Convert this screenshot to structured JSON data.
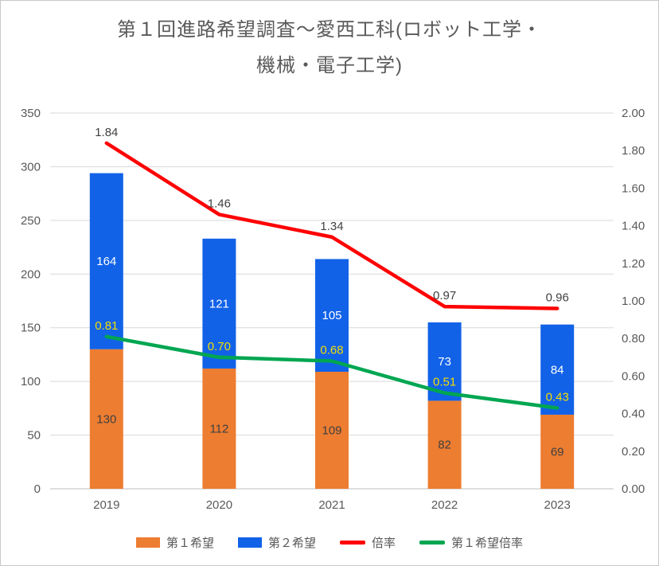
{
  "title": {
    "line1": "第１回進路希望調査～愛西工科(ロボット工学・",
    "line2": "機械・電子工学)"
  },
  "chart_data": {
    "type": "bar+line-combo",
    "categories": [
      "2019",
      "2020",
      "2021",
      "2022",
      "2023"
    ],
    "series": [
      {
        "name": "第１希望",
        "type": "bar",
        "axis": "left",
        "color": "#ED7D31",
        "label_color": "#404040",
        "values": [
          130,
          112,
          109,
          82,
          69
        ],
        "labels": [
          "130",
          "112",
          "109",
          "82",
          "69"
        ]
      },
      {
        "name": "第２希望",
        "type": "bar",
        "axis": "left",
        "color": "#1262E8",
        "label_color": "#FFFFFF",
        "values": [
          164,
          121,
          105,
          73,
          84
        ],
        "labels": [
          "164",
          "121",
          "105",
          "73",
          "84"
        ]
      },
      {
        "name": "倍率",
        "type": "line",
        "axis": "right",
        "color": "#FF0000",
        "label_color": "#404040",
        "values": [
          1.84,
          1.46,
          1.34,
          0.97,
          0.96
        ],
        "labels": [
          "1.84",
          "1.46",
          "1.34",
          "0.97",
          "0.96"
        ]
      },
      {
        "name": "第１希望倍率",
        "type": "line",
        "axis": "right",
        "color": "#00A651",
        "label_color": "#F2DE00",
        "values": [
          0.81,
          0.7,
          0.68,
          0.51,
          0.43
        ],
        "labels": [
          "0.81",
          "0.70",
          "0.68",
          "0.51",
          "0.43"
        ]
      }
    ],
    "left_axis": {
      "min": 0,
      "max": 350,
      "step": 50,
      "ticks": [
        "0",
        "50",
        "100",
        "150",
        "200",
        "250",
        "300",
        "350"
      ]
    },
    "right_axis": {
      "min": 0,
      "max": 2,
      "step": 0.2,
      "ticks": [
        "0.00",
        "0.20",
        "0.40",
        "0.60",
        "0.80",
        "1.00",
        "1.20",
        "1.40",
        "1.60",
        "1.80",
        "2.00"
      ]
    },
    "grid": "horizontal",
    "legend_position": "bottom",
    "gridline_color": "#D9D9D9",
    "axisline_color": "#BFBFBF"
  }
}
